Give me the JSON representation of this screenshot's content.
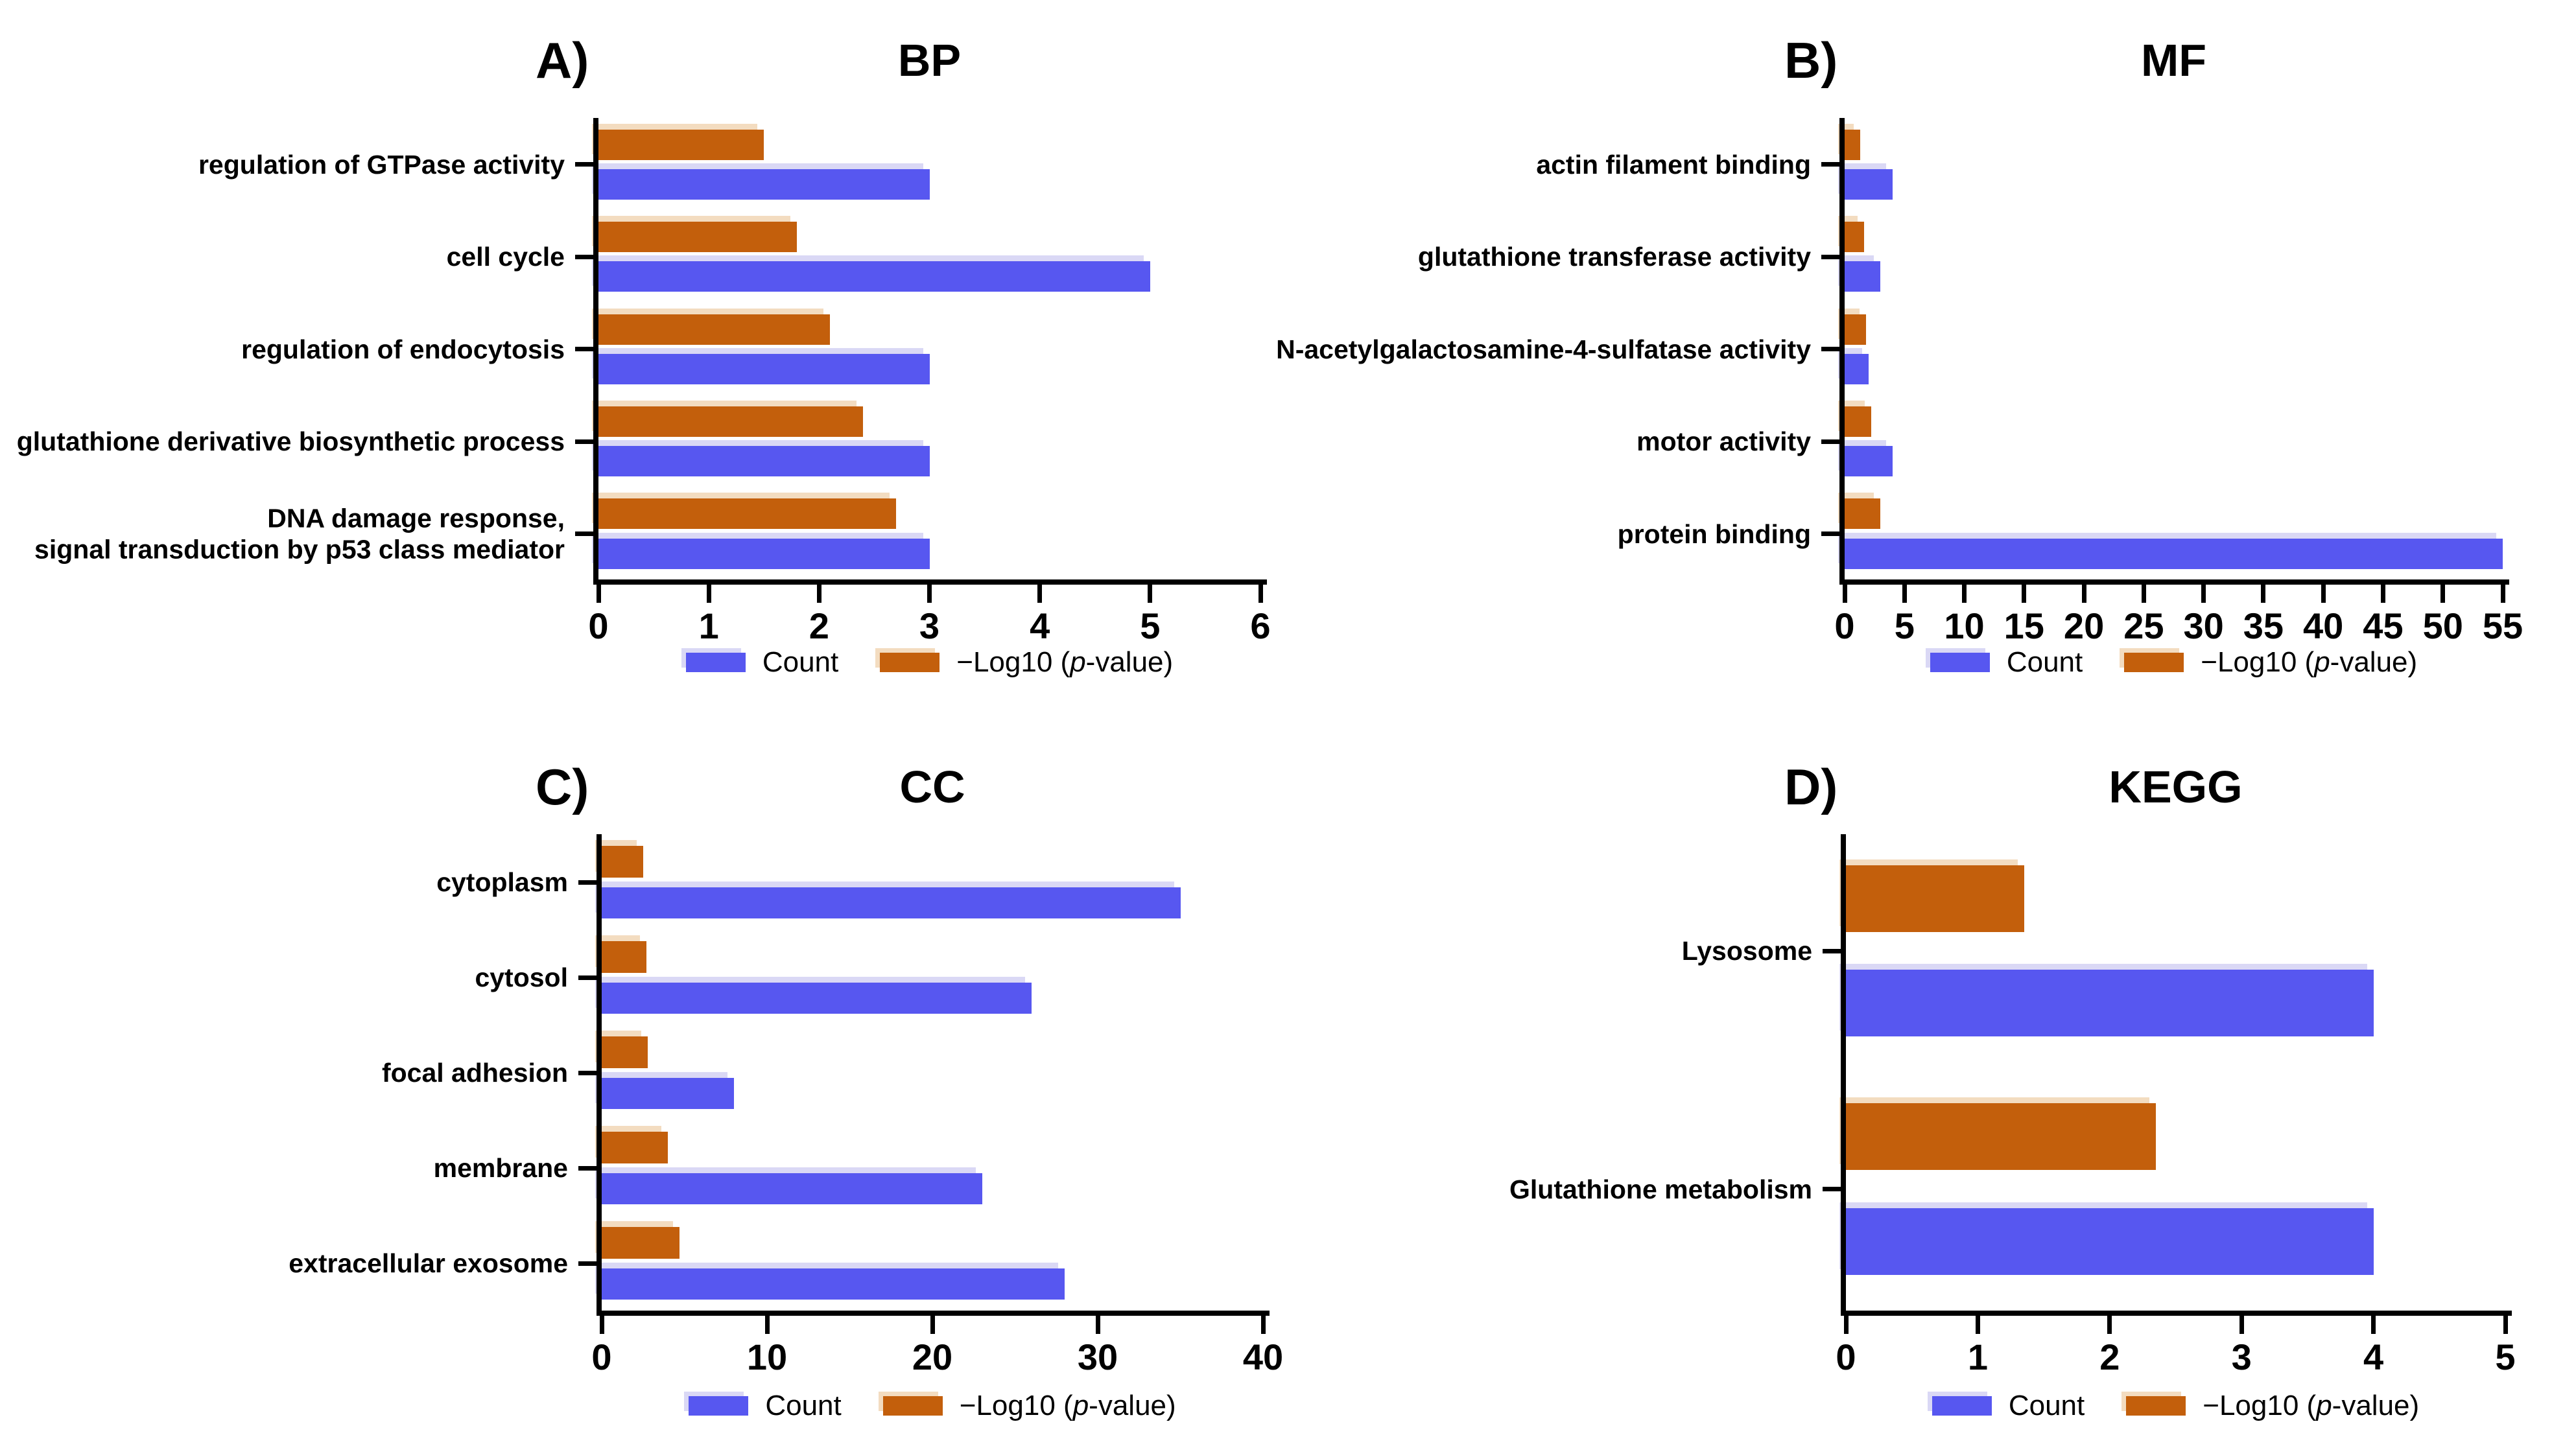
{
  "colors": {
    "count_color": "#5757f0",
    "pvalue_color": "#c35f0c",
    "axis_color": "#000000"
  },
  "legend": {
    "count_label": "Count",
    "pvalue_label_pre": "−Log10 (",
    "pvalue_label_italic": "p",
    "pvalue_label_post": "-value)"
  },
  "chart_data": [
    {
      "type": "bar",
      "orientation": "horizontal",
      "panel_letter": "A)",
      "title": "BP",
      "categories": [
        "regulation of GTPase activity",
        "cell cycle",
        "regulation of endocytosis",
        "glutathione derivative biosynthetic process",
        "DNA damage response,\nsignal transduction by p53 class mediator"
      ],
      "series": [
        {
          "key": "count",
          "name": "Count",
          "values": [
            3,
            5,
            3,
            3,
            3
          ]
        },
        {
          "key": "pvalue",
          "name": "−Log10 (p-value)",
          "values": [
            1.5,
            1.8,
            2.1,
            2.4,
            2.7
          ]
        }
      ],
      "xlim": [
        0,
        6
      ],
      "xticks": [
        0,
        1,
        2,
        3,
        4,
        5,
        6
      ],
      "grid": false,
      "legend_position": "bottom"
    },
    {
      "type": "bar",
      "orientation": "horizontal",
      "panel_letter": "B)",
      "title": "MF",
      "categories": [
        "actin filament binding",
        "glutathione transferase activity",
        "N-acetylgalactosamine-4-sulfatase activity",
        "motor activity",
        "protein binding"
      ],
      "series": [
        {
          "key": "count",
          "name": "Count",
          "values": [
            4,
            3,
            2,
            4,
            55
          ]
        },
        {
          "key": "pvalue",
          "name": "−Log10 (p-value)",
          "values": [
            1.3,
            1.6,
            1.8,
            2.2,
            3.0
          ]
        }
      ],
      "xlim": [
        0,
        55
      ],
      "xticks": [
        0,
        5,
        10,
        15,
        20,
        25,
        30,
        35,
        40,
        45,
        50,
        55
      ],
      "grid": false,
      "legend_position": "bottom"
    },
    {
      "type": "bar",
      "orientation": "horizontal",
      "panel_letter": "C)",
      "title": "CC",
      "categories": [
        "cytoplasm",
        "cytosol",
        "focal adhesion",
        "membrane",
        "extracellular exosome"
      ],
      "series": [
        {
          "key": "count",
          "name": "Count",
          "values": [
            35,
            26,
            8,
            23,
            28
          ]
        },
        {
          "key": "pvalue",
          "name": "−Log10 (p-value)",
          "values": [
            2.5,
            2.7,
            2.8,
            4.0,
            4.7
          ]
        }
      ],
      "xlim": [
        0,
        40
      ],
      "xticks": [
        0,
        10,
        20,
        30,
        40
      ],
      "grid": false,
      "legend_position": "bottom"
    },
    {
      "type": "bar",
      "orientation": "horizontal",
      "panel_letter": "D)",
      "title": "KEGG",
      "categories": [
        "Lysosome",
        "Glutathione metabolism"
      ],
      "series": [
        {
          "key": "count",
          "name": "Count",
          "values": [
            4,
            4
          ]
        },
        {
          "key": "pvalue",
          "name": "−Log10 (p-value)",
          "values": [
            1.35,
            2.35
          ]
        }
      ],
      "xlim": [
        0,
        5
      ],
      "xticks": [
        0,
        1,
        2,
        3,
        4,
        5
      ],
      "grid": false,
      "legend_position": "bottom"
    }
  ]
}
